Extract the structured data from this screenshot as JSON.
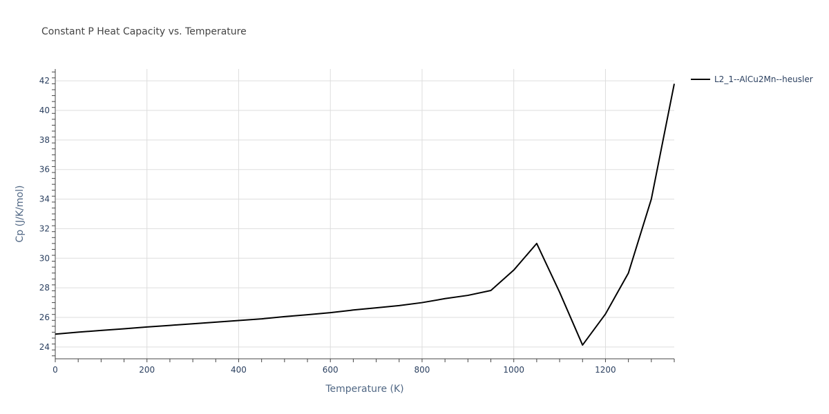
{
  "chart_data": {
    "type": "line",
    "title": "Constant P Heat Capacity vs. Temperature",
    "xlabel": "Temperature (K)",
    "ylabel": "Cp (J/K/mol)",
    "xlim": [
      0,
      1350
    ],
    "ylim": [
      23.2,
      42.8
    ],
    "x_ticks": [
      0,
      200,
      400,
      600,
      800,
      1000,
      1200
    ],
    "x_tick_labels": [
      "0",
      "200",
      "400",
      "600",
      "800",
      "1000",
      "1200"
    ],
    "y_ticks": [
      24,
      26,
      28,
      30,
      32,
      34,
      36,
      38,
      40,
      42
    ],
    "y_tick_labels": [
      "24",
      "26",
      "28",
      "30",
      "32",
      "34",
      "36",
      "38",
      "40",
      "42"
    ],
    "grid": true,
    "legend_position": "top-right",
    "series": [
      {
        "name": "L2_1--AlCu2Mn--heusler",
        "color": "#000000",
        "x": [
          0,
          50,
          100,
          150,
          200,
          250,
          300,
          350,
          400,
          450,
          500,
          550,
          600,
          650,
          700,
          750,
          800,
          850,
          900,
          950,
          1000,
          1050,
          1100,
          1150,
          1200,
          1250,
          1300,
          1350
        ],
        "y": [
          24.87,
          25.0,
          25.12,
          25.23,
          25.35,
          25.46,
          25.57,
          25.68,
          25.79,
          25.9,
          26.05,
          26.18,
          26.32,
          26.5,
          26.65,
          26.8,
          27.0,
          27.27,
          27.49,
          27.82,
          29.2,
          31.0,
          27.7,
          24.13,
          26.23,
          29.0,
          34.0,
          41.8
        ]
      }
    ]
  }
}
